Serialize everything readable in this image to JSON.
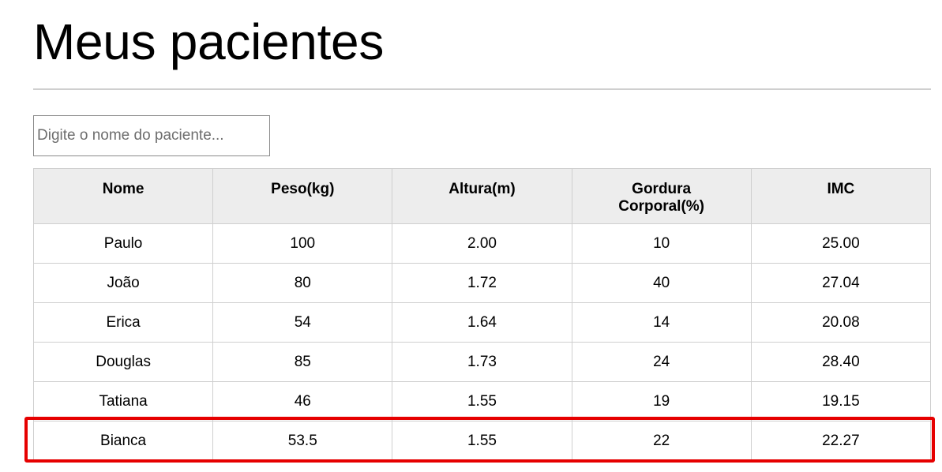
{
  "page": {
    "title": "Meus pacientes"
  },
  "search": {
    "placeholder": "Digite o nome do paciente..."
  },
  "table": {
    "headers": [
      "Nome",
      "Peso(kg)",
      "Altura(m)",
      "Gordura Corporal(%)",
      "IMC"
    ],
    "rows": [
      [
        "Paulo",
        "100",
        "2.00",
        "10",
        "25.00"
      ],
      [
        "João",
        "80",
        "1.72",
        "40",
        "27.04"
      ],
      [
        "Erica",
        "54",
        "1.64",
        "14",
        "20.08"
      ],
      [
        "Douglas",
        "85",
        "1.73",
        "24",
        "28.40"
      ],
      [
        "Tatiana",
        "46",
        "1.55",
        "19",
        "19.15"
      ],
      [
        "Bianca",
        "53.5",
        "1.55",
        "22",
        "22.27"
      ]
    ]
  },
  "highlight": {
    "row_index": 5,
    "color": "#e60000"
  }
}
